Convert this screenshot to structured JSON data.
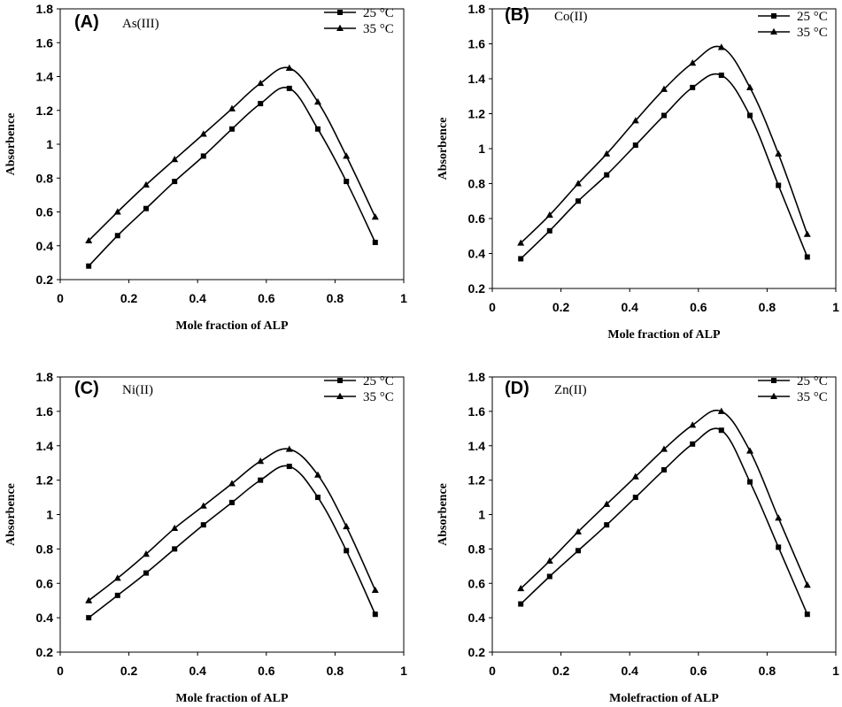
{
  "chart_data": [
    {
      "type": "line",
      "letter": "(A)",
      "ion": "As(III)",
      "xlabel": "Mole fraction of ALP",
      "ylabel": "Absorbence",
      "xlim": [
        0,
        1
      ],
      "ylim": [
        0.2,
        1.8
      ],
      "x_ticks": [
        0,
        0.2,
        0.4,
        0.6,
        0.8,
        1
      ],
      "x_tick_labels": [
        "0",
        "0.2",
        "0.4",
        "0.6",
        "0.8",
        "1"
      ],
      "y_ticks": [
        0.2,
        0.4,
        0.6,
        0.8,
        1,
        1.2,
        1.4,
        1.6,
        1.8
      ],
      "y_tick_labels": [
        "0.2",
        "0.4",
        "0.6",
        "0.8",
        "1",
        "1.2",
        "1.4",
        "1.6",
        "1.8"
      ],
      "x": [
        0.083,
        0.167,
        0.25,
        0.333,
        0.417,
        0.5,
        0.583,
        0.667,
        0.75,
        0.833,
        0.917
      ],
      "series": [
        {
          "name": "25  °C",
          "marker": "square",
          "values": [
            0.28,
            0.46,
            0.62,
            0.78,
            0.93,
            1.09,
            1.24,
            1.33,
            1.09,
            0.78,
            0.42
          ]
        },
        {
          "name": "35 °C",
          "marker": "triangle",
          "values": [
            0.43,
            0.6,
            0.76,
            0.91,
            1.06,
            1.21,
            1.36,
            1.45,
            1.25,
            0.93,
            0.57
          ]
        }
      ]
    },
    {
      "type": "line",
      "letter": "(B)",
      "ion": "Co(II)",
      "xlabel": "Mole fraction of ALP",
      "ylabel": "Absorbence",
      "xlim": [
        0,
        1
      ],
      "ylim": [
        0.2,
        1.8
      ],
      "x_ticks": [
        0,
        0.2,
        0.4,
        0.6,
        0.8,
        1
      ],
      "x_tick_labels": [
        "0",
        "0.2",
        "0.4",
        "0.6",
        "0.8",
        "1"
      ],
      "y_ticks": [
        0.2,
        0.4,
        0.6,
        0.8,
        1,
        1.2,
        1.4,
        1.6,
        1.8
      ],
      "y_tick_labels": [
        "0.2",
        "0.4",
        "0.6",
        "0.8",
        "1",
        "1.2",
        "1.4",
        "1.6",
        "1.8"
      ],
      "x": [
        0.083,
        0.167,
        0.25,
        0.333,
        0.417,
        0.5,
        0.583,
        0.667,
        0.75,
        0.833,
        0.917
      ],
      "series": [
        {
          "name": "25  °C",
          "marker": "square",
          "values": [
            0.37,
            0.53,
            0.7,
            0.85,
            1.02,
            1.19,
            1.35,
            1.42,
            1.19,
            0.79,
            0.38
          ]
        },
        {
          "name": "35 °C",
          "marker": "triangle",
          "values": [
            0.46,
            0.62,
            0.8,
            0.97,
            1.16,
            1.34,
            1.49,
            1.58,
            1.35,
            0.97,
            0.51
          ]
        }
      ]
    },
    {
      "type": "line",
      "letter": "(C)",
      "ion": "Ni(II)",
      "xlabel": "Mole fraction of ALP",
      "ylabel": "Absorbence",
      "xlim": [
        0,
        1
      ],
      "ylim": [
        0.2,
        1.8
      ],
      "x_ticks": [
        0,
        0.2,
        0.4,
        0.6,
        0.8,
        1
      ],
      "x_tick_labels": [
        "0",
        "0.2",
        "0.4",
        "0.6",
        "0.8",
        "1"
      ],
      "y_ticks": [
        0.2,
        0.4,
        0.6,
        0.8,
        1,
        1.2,
        1.4,
        1.6,
        1.8
      ],
      "y_tick_labels": [
        "0.2",
        "0.4",
        "0.6",
        "0.8",
        "1",
        "1.2",
        "1.4",
        "1.6",
        "1.8"
      ],
      "x": [
        0.083,
        0.167,
        0.25,
        0.333,
        0.417,
        0.5,
        0.583,
        0.667,
        0.75,
        0.833,
        0.917
      ],
      "series": [
        {
          "name": "25  °C",
          "marker": "square",
          "values": [
            0.4,
            0.53,
            0.66,
            0.8,
            0.94,
            1.07,
            1.2,
            1.28,
            1.1,
            0.79,
            0.42
          ]
        },
        {
          "name": "35 °C",
          "marker": "triangle",
          "values": [
            0.5,
            0.63,
            0.77,
            0.92,
            1.05,
            1.18,
            1.31,
            1.38,
            1.23,
            0.93,
            0.56
          ]
        }
      ]
    },
    {
      "type": "line",
      "letter": "(D)",
      "ion": "Zn(II)",
      "xlabel": "Molefraction of ALP",
      "ylabel": "Absorbence",
      "xlim": [
        0,
        1
      ],
      "ylim": [
        0.2,
        1.8
      ],
      "x_ticks": [
        0,
        0.2,
        0.4,
        0.6,
        0.8,
        1
      ],
      "x_tick_labels": [
        "0",
        "0.2",
        "0.4",
        "0.6",
        "0.8",
        "1"
      ],
      "y_ticks": [
        0.2,
        0.4,
        0.6,
        0.8,
        1,
        1.2,
        1.4,
        1.6,
        1.8
      ],
      "y_tick_labels": [
        "0.2",
        "0.4",
        "0.6",
        "0.8",
        "1",
        "1.2",
        "1.4",
        "1.6",
        "1.8"
      ],
      "x": [
        0.083,
        0.167,
        0.25,
        0.333,
        0.417,
        0.5,
        0.583,
        0.667,
        0.75,
        0.833,
        0.917
      ],
      "series": [
        {
          "name": "25  °C",
          "marker": "square",
          "values": [
            0.48,
            0.64,
            0.79,
            0.94,
            1.1,
            1.26,
            1.41,
            1.49,
            1.19,
            0.81,
            0.42
          ]
        },
        {
          "name": "35 °C",
          "marker": "triangle",
          "values": [
            0.57,
            0.73,
            0.9,
            1.06,
            1.22,
            1.38,
            1.52,
            1.6,
            1.37,
            0.98,
            0.59
          ]
        }
      ]
    }
  ]
}
